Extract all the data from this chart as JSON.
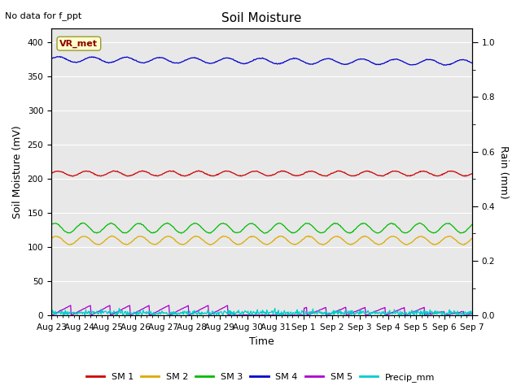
{
  "title": "Soil Moisture",
  "xlabel": "Time",
  "ylabel_left": "Soil Moisture (mV)",
  "ylabel_right": "Rain (mm)",
  "top_left_text": "No data for f_ppt",
  "annotation_box": "VR_met",
  "ylim_left": [
    0,
    420
  ],
  "ylim_right": [
    0,
    1.05
  ],
  "yticks_left": [
    0,
    50,
    100,
    150,
    200,
    250,
    300,
    350,
    400
  ],
  "yticks_right": [
    0.0,
    0.2,
    0.4,
    0.6,
    0.8,
    1.0
  ],
  "background_color": "#e8e8e8",
  "sm1_color": "#cc0000",
  "sm2_color": "#ddaa00",
  "sm3_color": "#00bb00",
  "sm4_color": "#0000cc",
  "sm5_color": "#aa00cc",
  "precip_color": "#00cccc",
  "sm1_base": 208,
  "sm2_base": 110,
  "sm3_base": 128,
  "sm4_base": 375,
  "n_points": 720,
  "xtick_labels": [
    "Aug 23",
    "Aug 24",
    "Aug 25",
    "Aug 26",
    "Aug 27",
    "Aug 28",
    "Aug 29",
    "Aug 30",
    "Aug 31",
    "Sep 1",
    "Sep 2",
    "Sep 3",
    "Sep 4",
    "Sep 5",
    "Sep 6",
    "Sep 7"
  ],
  "legend_labels": [
    "SM 1",
    "SM 2",
    "SM 3",
    "SM 4",
    "SM 5",
    "Precip_mm"
  ],
  "legend_colors": [
    "#cc0000",
    "#ddaa00",
    "#00bb00",
    "#0000cc",
    "#aa00cc",
    "#00cccc"
  ]
}
